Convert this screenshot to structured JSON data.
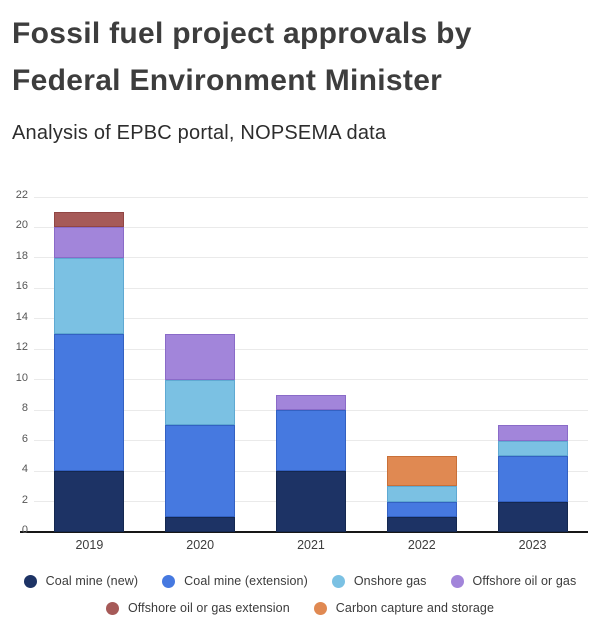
{
  "header": {
    "title_lines": [
      "Fossil fuel project approvals by",
      "Federal Environment Minister"
    ],
    "subtitle": "Analysis of EPBC portal, NOPSEMA data"
  },
  "chart_data": {
    "type": "bar",
    "stacked": true,
    "title": "Fossil fuel project approvals by Federal Environment Minister",
    "subtitle": "Analysis of EPBC portal, NOPSEMA data",
    "categories": [
      "2019",
      "2020",
      "2021",
      "2022",
      "2023"
    ],
    "series": [
      {
        "name": "Coal mine (new)",
        "color": "#1d3365",
        "border": "#142850",
        "values": [
          4,
          1,
          4,
          1,
          2
        ]
      },
      {
        "name": "Coal mine (extension)",
        "color": "#4679e0",
        "border": "#3361c2",
        "values": [
          9,
          6,
          4,
          1,
          3
        ]
      },
      {
        "name": "Onshore gas",
        "color": "#7bc1e3",
        "border": "#5fa9d2",
        "values": [
          5,
          3,
          0,
          1,
          1
        ]
      },
      {
        "name": "Offshore oil or gas",
        "color": "#a285da",
        "border": "#8a6bc8",
        "values": [
          2,
          3,
          1,
          0,
          1
        ]
      },
      {
        "name": "Offshore oil or gas extension",
        "color": "#a65a58",
        "border": "#914644",
        "values": [
          1,
          0,
          0,
          0,
          0
        ]
      },
      {
        "name": "Carbon capture and storage",
        "color": "#e08952",
        "border": "#c97038",
        "values": [
          0,
          0,
          0,
          2,
          0
        ]
      }
    ],
    "totals": [
      21,
      13,
      9,
      5,
      7
    ],
    "xlabel": "",
    "ylabel": "",
    "ylim": [
      0,
      22
    ],
    "yticks": [
      0,
      2,
      4,
      6,
      8,
      10,
      12,
      14,
      16,
      18,
      20,
      22
    ],
    "grid": true,
    "legend_position": "bottom",
    "legend_rows": [
      [
        0,
        1,
        2,
        3
      ],
      [
        4,
        5
      ]
    ]
  },
  "style": {
    "gridline_color": "#eaeaea",
    "axis_color": "#171717",
    "tick_text_color": "#565656",
    "category_text_color": "#3d3d3d",
    "title_color": "#3d3d3d",
    "background": "#ffffff"
  }
}
